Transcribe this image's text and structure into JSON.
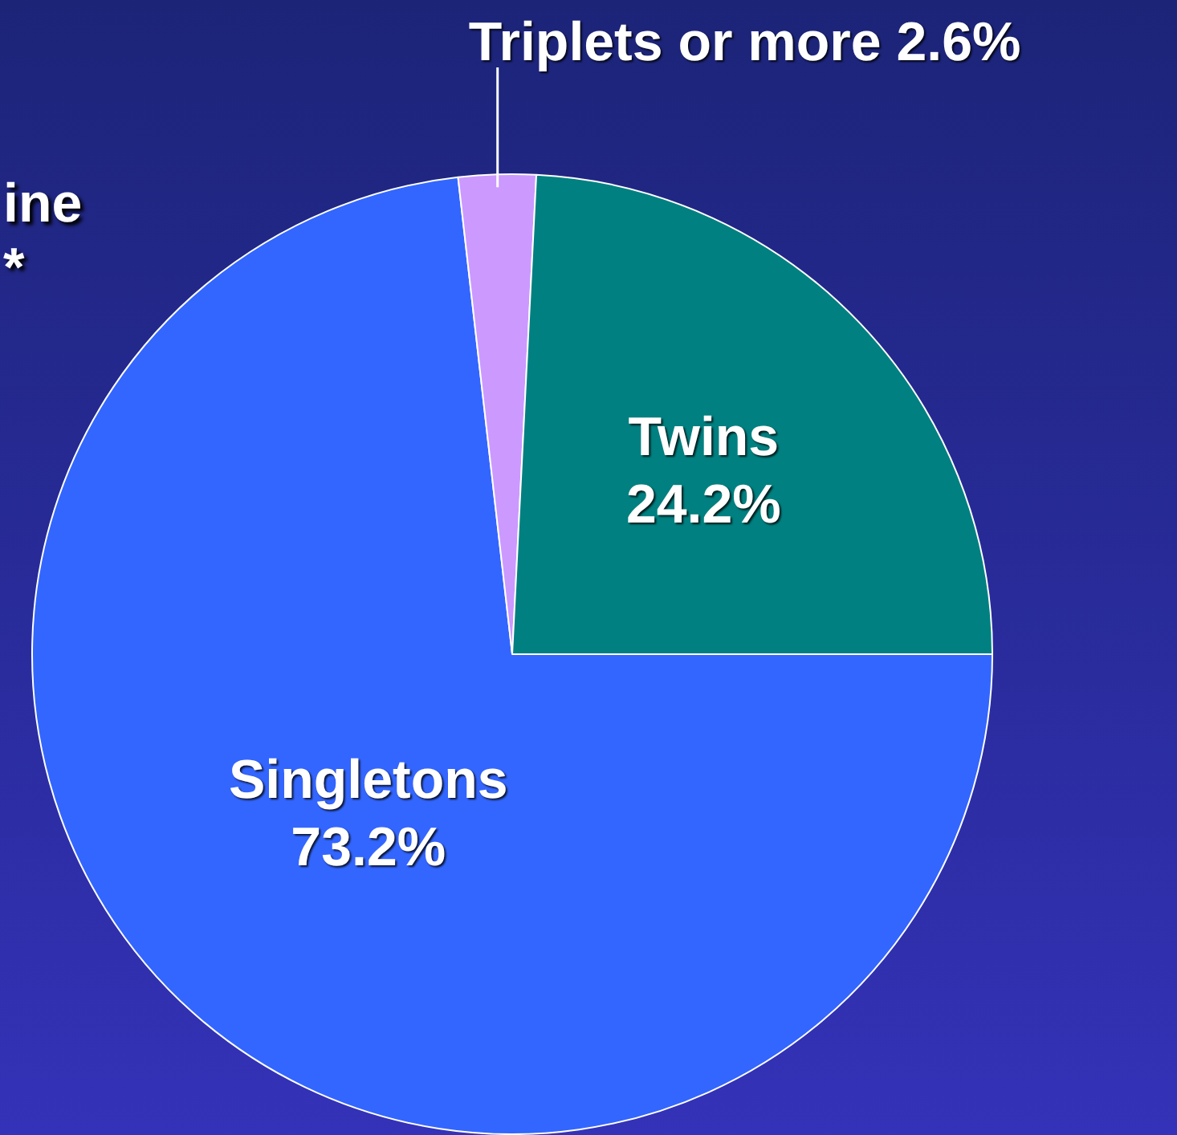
{
  "chart_data": {
    "type": "pie",
    "categories": [
      "Singletons",
      "Triplets or more",
      "Twins"
    ],
    "values": [
      73.2,
      2.6,
      24.2
    ],
    "value_labels": [
      "73.2%",
      "2.6%",
      "24.2%"
    ],
    "colors": [
      "#3366ff",
      "#cc99ff",
      "#008080"
    ],
    "legend": false,
    "annotations": [
      "ine",
      "*"
    ]
  }
}
